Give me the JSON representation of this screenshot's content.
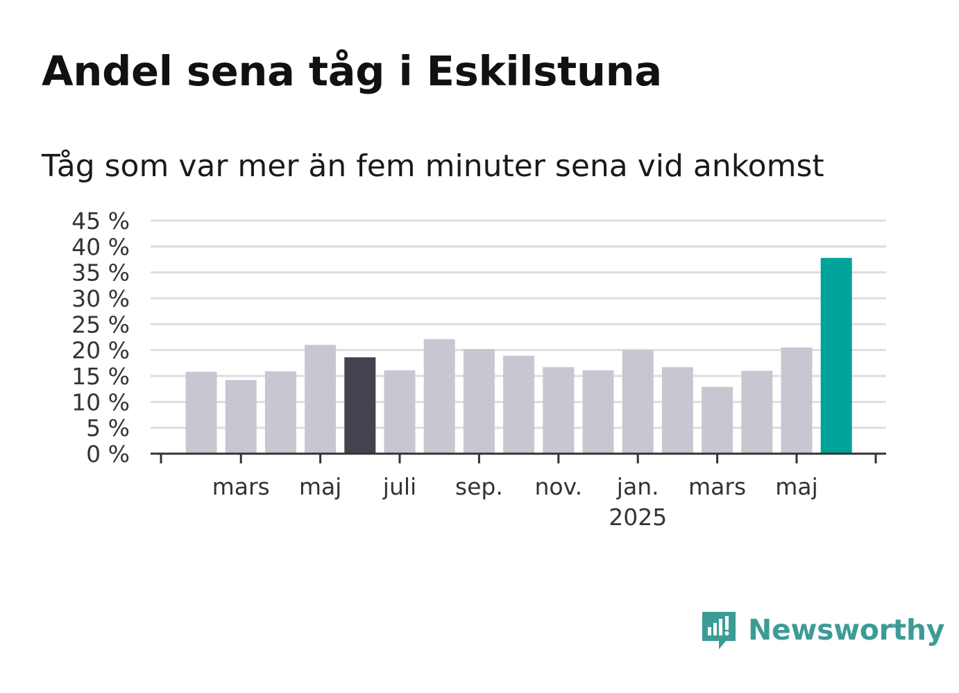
{
  "title": "Andel sena tåg i Eskilstuna",
  "subtitle": "Tåg som var mer än fem minuter sena vid ankomst",
  "brand": {
    "name": "Newsworthy",
    "icon": "newsworthy-logo-icon",
    "color": "#3d9b96"
  },
  "chart_data": {
    "type": "bar",
    "title": "Andel sena tåg i Eskilstuna",
    "subtitle": "Tåg som var mer än fem minuter sena vid ankomst",
    "xlabel": "",
    "ylabel": "",
    "ylim": [
      0,
      45
    ],
    "yticks": [
      0,
      5,
      10,
      15,
      20,
      25,
      30,
      35,
      40,
      45
    ],
    "ytick_labels": [
      "0 %",
      "5 %",
      "10 %",
      "15 %",
      "20 %",
      "25 %",
      "30 %",
      "35 %",
      "40 %",
      "45 %"
    ],
    "x_tick_labels": [
      {
        "label": "mars",
        "month": "2024-03"
      },
      {
        "label": "maj",
        "month": "2024-05"
      },
      {
        "label": "juli",
        "month": "2024-07"
      },
      {
        "label": "sep.",
        "month": "2024-09"
      },
      {
        "label": "nov.",
        "month": "2024-11"
      },
      {
        "label": "jan.",
        "sublabel": "2025",
        "month": "2025-01"
      },
      {
        "label": "mars",
        "month": "2025-03"
      },
      {
        "label": "maj",
        "month": "2025-05"
      }
    ],
    "categories": [
      "2024-02",
      "2024-03",
      "2024-04",
      "2024-05",
      "2024-06",
      "2024-07",
      "2024-08",
      "2024-09",
      "2024-10",
      "2024-11",
      "2024-12",
      "2025-01",
      "2025-02",
      "2025-03",
      "2025-04",
      "2025-05",
      "2025-06"
    ],
    "values": [
      15.8,
      14.2,
      15.9,
      21.0,
      18.6,
      16.1,
      22.1,
      20.2,
      18.9,
      16.7,
      16.1,
      20.0,
      16.7,
      12.9,
      16.0,
      20.5,
      37.8
    ],
    "colors": {
      "default": "#c8c7d1",
      "highlight_previous_year": "#44424f",
      "highlight_latest": "#00a398"
    },
    "highlights": {
      "2024-06": "highlight_previous_year",
      "2025-06": "highlight_latest"
    },
    "grid": true,
    "legend": "none"
  }
}
